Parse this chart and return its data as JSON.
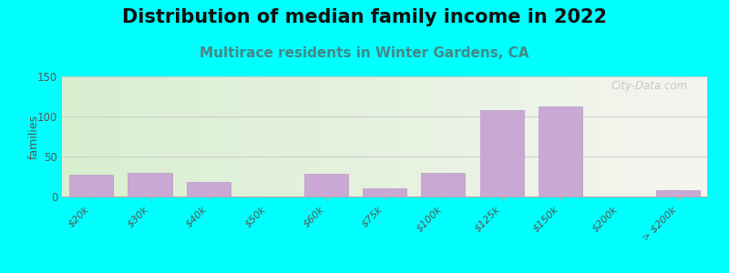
{
  "title": "Distribution of median family income in 2022",
  "subtitle": "Multirace residents in Winter Gardens, CA",
  "ylabel": "families",
  "categories": [
    "$20k",
    "$30k",
    "$40k",
    "$50k",
    "$60k",
    "$75k",
    "$100k",
    "$125k",
    "$150k",
    "$200k",
    "> $200k"
  ],
  "values": [
    27,
    30,
    18,
    0,
    28,
    10,
    30,
    108,
    113,
    0,
    8
  ],
  "bar_color": "#c9a8d4",
  "bar_edge_color": "#b89ac4",
  "background_color": "#00ffff",
  "plot_bg_gradient_left": "#d8efd0",
  "plot_bg_gradient_right": "#f5f5f0",
  "ylim": [
    0,
    150
  ],
  "yticks": [
    0,
    50,
    100,
    150
  ],
  "title_fontsize": 15,
  "subtitle_fontsize": 11,
  "subtitle_color": "#448888",
  "watermark": "City-Data.com",
  "bar_width": 0.75
}
